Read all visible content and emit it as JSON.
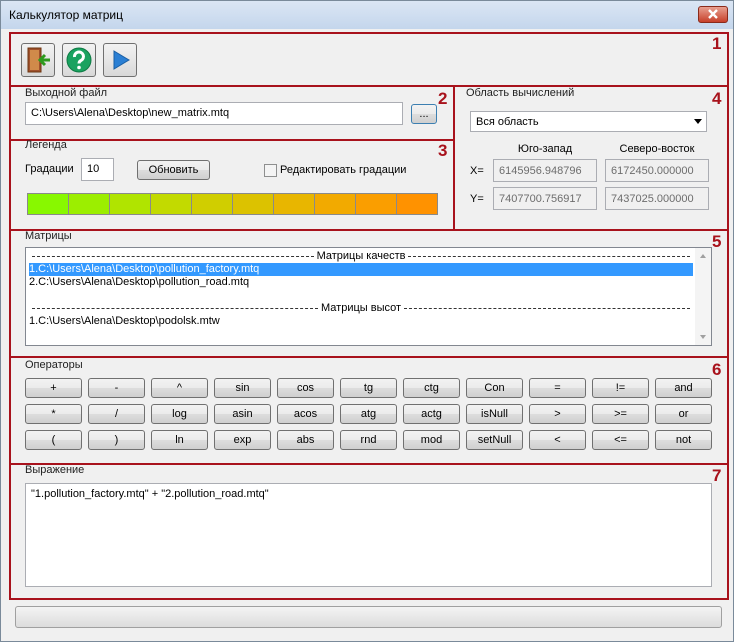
{
  "window": {
    "title": "Калькулятор матриц"
  },
  "section_numbers": [
    "1",
    "2",
    "3",
    "4",
    "5",
    "6",
    "7"
  ],
  "output_file": {
    "label": "Выходной файл",
    "path": "C:\\Users\\Alena\\Desktop\\new_matrix.mtq",
    "browse_button": "..."
  },
  "legend": {
    "title": "Легенда",
    "gradations_label": "Градации",
    "gradations": 10,
    "update_button": "Обновить",
    "edit_checkbox": "Редактировать градации",
    "colors": [
      "#88f800",
      "#9cee00",
      "#b0e400",
      "#c2da00",
      "#d0ce00",
      "#dcc200",
      "#e8b600",
      "#f2aa00",
      "#fa9e00",
      "#ff9200"
    ]
  },
  "area": {
    "title": "Область вычислений",
    "selection": "Вся область",
    "southwest_label": "Юго-запад",
    "northeast_label": "Северо-восток",
    "x_label": "X=",
    "y_label": "Y=",
    "x_southwest": "6145956.948796",
    "x_northeast": "6172450.000000",
    "y_southwest": "7407700.756917",
    "y_northeast": "7437025.000000"
  },
  "matrices": {
    "title": "Матрицы",
    "groups": [
      {
        "header": "Матрицы качеств",
        "items": [
          "1.C:\\Users\\Alena\\Desktop\\pollution_factory.mtq",
          "2.C:\\Users\\Alena\\Desktop\\pollution_road.mtq"
        ]
      },
      {
        "header": "Матрицы высот",
        "items": [
          "1.C:\\Users\\Alena\\Desktop\\podolsk.mtw"
        ]
      }
    ]
  },
  "operators": {
    "title": "Операторы",
    "rows": [
      [
        "+",
        "-",
        "^",
        "sin",
        "cos",
        "tg",
        "ctg",
        "Con",
        "=",
        "!=",
        "and"
      ],
      [
        "*",
        "/",
        "log",
        "asin",
        "acos",
        "atg",
        "actg",
        "isNull",
        ">",
        ">=",
        "or"
      ],
      [
        "(",
        ")",
        "ln",
        "exp",
        "abs",
        "rnd",
        "mod",
        "setNull",
        "<",
        "<=",
        "not"
      ]
    ]
  },
  "expression": {
    "title": "Выражение",
    "text": "\"1.pollution_factory.mtq\" + \"2.pollution_road.mtq\""
  }
}
